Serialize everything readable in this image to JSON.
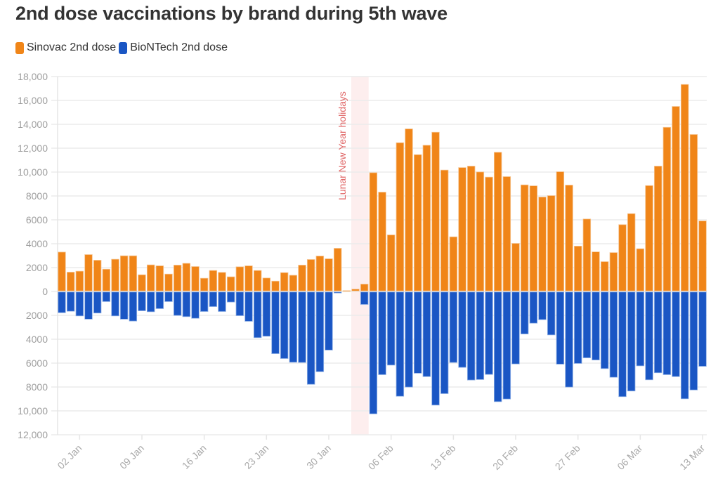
{
  "title": "2nd dose vaccinations by brand during 5th wave",
  "legend": [
    {
      "label": "Sinovac 2nd dose",
      "color": "#f08518"
    },
    {
      "label": "BioNTech 2nd dose",
      "color": "#1a56c4"
    }
  ],
  "chart_data": {
    "type": "bar",
    "stacked": "diverging",
    "title": "2nd dose vaccinations by brand during 5th wave",
    "xlabel": "",
    "ylabel": "",
    "ylim": [
      -12000,
      18000
    ],
    "yticks": [
      18000,
      16000,
      14000,
      12000,
      10000,
      8000,
      6000,
      4000,
      2000,
      0,
      -2000,
      -4000,
      -6000,
      -8000,
      -10000,
      -12000
    ],
    "ytick_labels": [
      "18,000",
      "16,000",
      "14,000",
      "12,000",
      "10,000",
      "8000",
      "6000",
      "4000",
      "2000",
      "0",
      "2000",
      "4000",
      "6000",
      "8000",
      "10,000",
      "12,000"
    ],
    "grid": true,
    "legend_position": "top-left",
    "categories": [
      "31 Dec",
      "01 Jan",
      "02 Jan",
      "03 Jan",
      "04 Jan",
      "05 Jan",
      "06 Jan",
      "07 Jan",
      "08 Jan",
      "09 Jan",
      "10 Jan",
      "11 Jan",
      "12 Jan",
      "13 Jan",
      "14 Jan",
      "15 Jan",
      "16 Jan",
      "17 Jan",
      "18 Jan",
      "19 Jan",
      "20 Jan",
      "21 Jan",
      "22 Jan",
      "23 Jan",
      "24 Jan",
      "25 Jan",
      "26 Jan",
      "27 Jan",
      "28 Jan",
      "29 Jan",
      "30 Jan",
      "31 Jan",
      "01 Feb",
      "02 Feb",
      "03 Feb",
      "04 Feb",
      "05 Feb",
      "06 Feb",
      "07 Feb",
      "08 Feb",
      "09 Feb",
      "10 Feb",
      "11 Feb",
      "12 Feb",
      "13 Feb",
      "14 Feb",
      "15 Feb",
      "16 Feb",
      "17 Feb",
      "18 Feb",
      "19 Feb",
      "20 Feb",
      "21 Feb",
      "22 Feb",
      "23 Feb",
      "24 Feb",
      "25 Feb",
      "26 Feb",
      "27 Feb",
      "28 Feb",
      "01 Mar",
      "02 Mar",
      "03 Mar",
      "04 Mar",
      "05 Mar",
      "06 Mar",
      "07 Mar",
      "08 Mar",
      "09 Mar",
      "10 Mar",
      "11 Mar",
      "12 Mar",
      "13 Mar"
    ],
    "xtick_labels": [
      {
        "index": 2,
        "label": "02 Jan"
      },
      {
        "index": 9,
        "label": "09 Jan"
      },
      {
        "index": 16,
        "label": "16 Jan"
      },
      {
        "index": 23,
        "label": "23 Jan"
      },
      {
        "index": 30,
        "label": "30 Jan"
      },
      {
        "index": 37,
        "label": "06 Feb"
      },
      {
        "index": 44,
        "label": "13 Feb"
      },
      {
        "index": 51,
        "label": "20 Feb"
      },
      {
        "index": 58,
        "label": "27 Feb"
      },
      {
        "index": 65,
        "label": "06 Mar"
      },
      {
        "index": 72,
        "label": "13 Mar"
      }
    ],
    "series": [
      {
        "name": "Sinovac 2nd dose",
        "direction": "up",
        "color": "#f08518",
        "values": [
          3250,
          1570,
          1650,
          3040,
          2570,
          1820,
          2650,
          2940,
          2940,
          1350,
          2180,
          2100,
          1410,
          2160,
          2310,
          2040,
          1060,
          1710,
          1550,
          1180,
          2020,
          2100,
          1710,
          1080,
          820,
          1530,
          1310,
          2160,
          2630,
          2920,
          2690,
          3570,
          20,
          150,
          570,
          9900,
          8270,
          4690,
          12410,
          13570,
          11410,
          12200,
          13290,
          10120,
          4530,
          10330,
          10450,
          9960,
          9530,
          11610,
          9570,
          3980,
          8880,
          8800,
          7860,
          7980,
          9980,
          8860,
          3750,
          6020,
          3270,
          2450,
          3210,
          5550,
          6470,
          3530,
          8820,
          10450,
          13700,
          15450,
          17290,
          13100,
          5860
        ]
      },
      {
        "name": "BioNTech 2nd dose",
        "direction": "down",
        "color": "#1a56c4",
        "values": [
          1730,
          1610,
          2000,
          2270,
          1760,
          800,
          2000,
          2270,
          2430,
          1570,
          1650,
          1390,
          800,
          1960,
          2060,
          2200,
          1630,
          1220,
          1630,
          840,
          1980,
          2450,
          3820,
          3700,
          5160,
          5570,
          5880,
          5900,
          7730,
          6670,
          4860,
          80,
          0,
          0,
          1040,
          10200,
          6920,
          6120,
          8730,
          7960,
          6800,
          7080,
          9470,
          8510,
          5900,
          6310,
          7370,
          7330,
          6900,
          9180,
          8960,
          6020,
          3510,
          2610,
          2310,
          3590,
          6040,
          7960,
          5980,
          5510,
          5690,
          6410,
          7140,
          8760,
          8290,
          6180,
          7350,
          6760,
          6920,
          7080,
          8940,
          8200,
          6220
        ]
      }
    ],
    "annotations": [
      {
        "type": "band",
        "from_index": 32.5,
        "to_index": 34.5,
        "label": "Lunar New Year holidays",
        "color": "#fdeeee",
        "label_color": "#e06868"
      }
    ]
  }
}
